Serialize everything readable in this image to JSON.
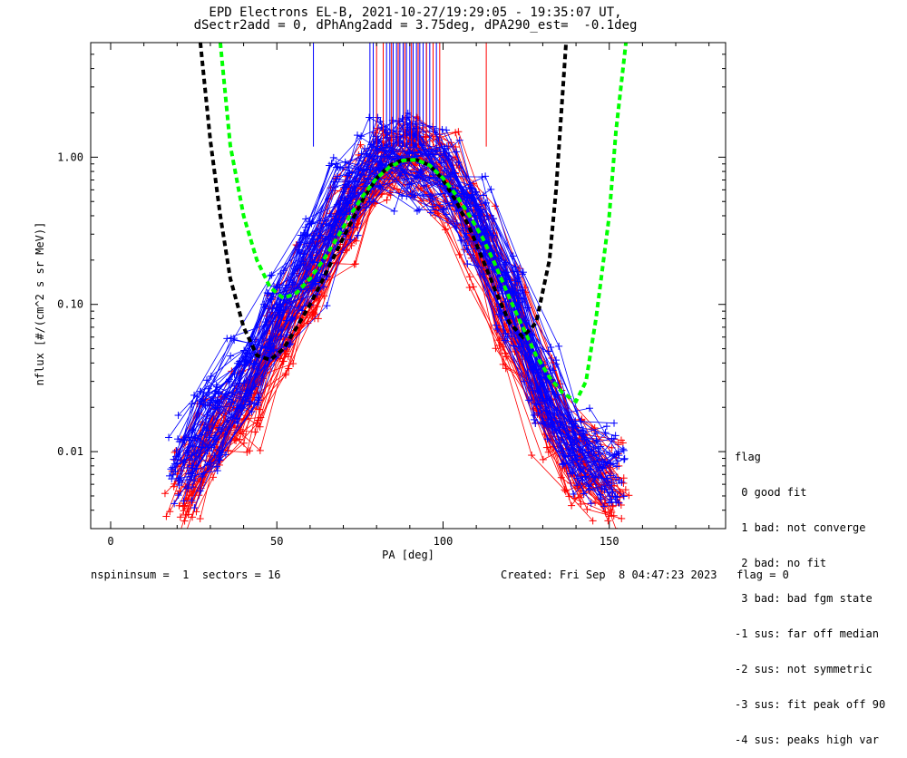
{
  "chart_data": {
    "type": "scatter",
    "title": "EPD Electrons EL-B, 2021-10-27/19:29:05 - 19:35:07 UT,",
    "subtitle": "dSectr2add = 0, dPhAng2add = 3.75deg, dPA290_est=  -0.1deg",
    "xlabel": "PA [deg]",
    "ylabel": "nflux [#/(cm^2 s sr MeV)]",
    "xlim": [
      -6,
      185
    ],
    "ylim": [
      0.003,
      6.0
    ],
    "yscale": "log",
    "x_ticks": [
      0,
      50,
      100,
      150
    ],
    "x_tick_labels": [
      "0",
      "50",
      "100",
      "150"
    ],
    "y_ticks": [
      0.01,
      0.1,
      1.0
    ],
    "y_tick_labels": [
      "0.01",
      "0.10",
      "1.00"
    ],
    "colors": {
      "red": "#ff0000",
      "blue": "#0000ff",
      "black": "#000000",
      "green": "#00ff00"
    },
    "series": [
      {
        "color": "red",
        "style": "lines+markers",
        "description_values": [
          {
            "x": [
              22,
              30,
              40,
              50,
              60,
              70,
              80,
              90,
              100,
              110,
              120,
              130,
              140,
              150
            ],
            "y": [
              0.006,
              0.012,
              0.02,
              0.06,
              0.15,
              0.4,
              0.85,
              0.95,
              0.7,
              0.3,
              0.08,
              0.02,
              0.008,
              0.006
            ]
          }
        ]
      },
      {
        "color": "blue",
        "style": "lines+markers",
        "description_values": [
          {
            "x": [
              22,
              30,
              40,
              50,
              60,
              70,
              80,
              90,
              100,
              110,
              120,
              130,
              140,
              150
            ],
            "y": [
              0.008,
              0.015,
              0.03,
              0.08,
              0.2,
              0.5,
              0.9,
              1.0,
              0.75,
              0.35,
              0.1,
              0.025,
              0.01,
              0.007
            ]
          }
        ]
      },
      {
        "color": "black",
        "style": "dashed",
        "x": [
          27,
          30,
          33,
          36,
          40,
          44,
          48,
          52,
          56,
          60,
          64,
          68,
          72,
          76,
          80,
          84,
          88,
          92,
          96,
          100,
          104,
          108,
          112,
          116,
          120,
          124,
          128,
          132,
          134,
          137
        ],
        "y": [
          6.0,
          1.3,
          0.4,
          0.15,
          0.07,
          0.045,
          0.042,
          0.05,
          0.07,
          0.1,
          0.15,
          0.23,
          0.35,
          0.52,
          0.72,
          0.88,
          0.96,
          0.96,
          0.88,
          0.7,
          0.5,
          0.33,
          0.2,
          0.12,
          0.075,
          0.06,
          0.075,
          0.2,
          0.6,
          6.0
        ]
      },
      {
        "color": "green",
        "style": "dashed",
        "x": [
          33,
          36,
          40,
          44,
          48,
          52,
          56,
          60,
          64,
          68,
          72,
          76,
          80,
          84,
          88,
          92,
          96,
          100,
          104,
          108,
          112,
          116,
          120,
          124,
          128,
          132,
          136,
          140,
          143,
          146,
          150,
          152,
          155
        ],
        "y": [
          6.0,
          1.2,
          0.4,
          0.2,
          0.13,
          0.11,
          0.12,
          0.15,
          0.2,
          0.28,
          0.4,
          0.55,
          0.72,
          0.86,
          0.95,
          0.96,
          0.88,
          0.72,
          0.55,
          0.4,
          0.28,
          0.18,
          0.11,
          0.07,
          0.045,
          0.032,
          0.025,
          0.022,
          0.03,
          0.08,
          0.4,
          1.5,
          6.0
        ]
      }
    ],
    "vertical_lines": {
      "blue": [
        61,
        78,
        79,
        83,
        84,
        85,
        86,
        87,
        88,
        89,
        90,
        91,
        92,
        93,
        94,
        95,
        96,
        97,
        98
      ],
      "red": [
        80,
        82,
        84.5,
        86.5,
        88.5,
        90.5,
        92.5,
        95,
        97,
        99,
        113
      ],
      "y_top": 6.0,
      "y_bottom": 1.18
    }
  },
  "legend": {
    "heading": "flag",
    "items": [
      " 0 good fit",
      " 1 bad: not converge",
      " 2 bad: no fit",
      " 3 bad: bad fgm state",
      "-1 sus: far off median",
      "-2 sus: not symmetric",
      "-3 sus: fit peak off 90",
      "-4 sus: peaks high var"
    ]
  },
  "footer": {
    "left": "nspininsum =  1  sectors = 16",
    "right": "Created: Fri Sep  8 04:47:23 2023   flag = 0"
  }
}
